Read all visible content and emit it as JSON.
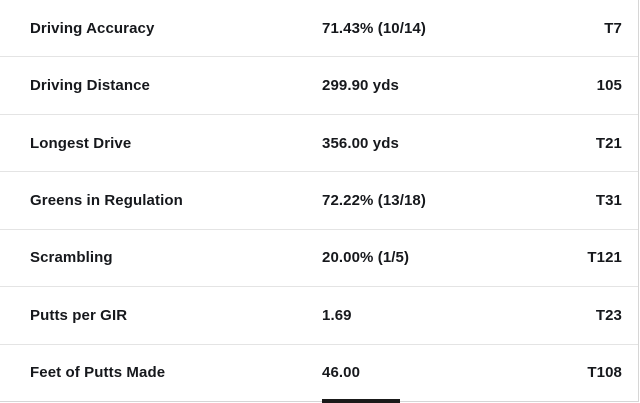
{
  "table": {
    "rows": [
      {
        "label": "Driving Accuracy",
        "value": "71.43% (10/14)",
        "rank": "T7"
      },
      {
        "label": "Driving Distance",
        "value": "299.90 yds",
        "rank": "105"
      },
      {
        "label": "Longest Drive",
        "value": "356.00 yds",
        "rank": "T21"
      },
      {
        "label": "Greens in Regulation",
        "value": "72.22% (13/18)",
        "rank": "T31"
      },
      {
        "label": "Scrambling",
        "value": "20.00% (1/5)",
        "rank": "T121"
      },
      {
        "label": "Putts per GIR",
        "value": "1.69",
        "rank": "T23"
      },
      {
        "label": "Feet of Putts Made",
        "value": "46.00",
        "rank": "T108"
      }
    ]
  },
  "colors": {
    "text": "#16181c",
    "divider": "#e4e4e4",
    "outer_border": "#d6d6d6",
    "partial_bar": "#1a1a1a"
  }
}
